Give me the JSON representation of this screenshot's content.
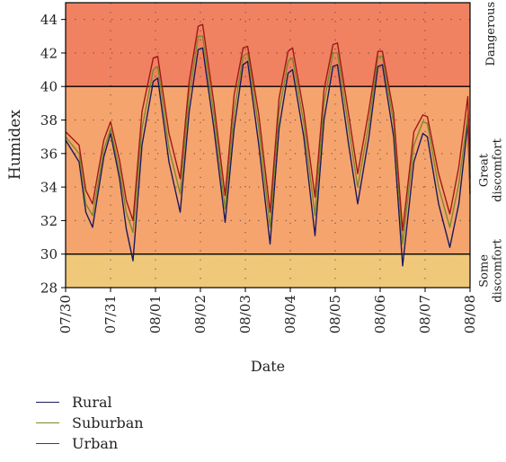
{
  "chart_data": {
    "type": "line",
    "xlabel": "Date",
    "ylabel": "Humidex",
    "ylim": [
      28,
      45
    ],
    "yticks": [
      28,
      30,
      32,
      34,
      36,
      38,
      40,
      42,
      44
    ],
    "xticks": [
      "07/30",
      "07/31",
      "08/01",
      "08/02",
      "08/03",
      "08/04",
      "08/05",
      "08/06",
      "08/07",
      "08/08"
    ],
    "grid": "dotted",
    "legend_position": "bottom-left",
    "zones": [
      {
        "label": "Dangerous",
        "from": 40,
        "to": 45,
        "color": "#f08262"
      },
      {
        "label": "Great discomfort",
        "from": 30,
        "to": 40,
        "color": "#f5a46e"
      },
      {
        "label": "Some discomfort",
        "from": 28,
        "to": 30,
        "color": "#f0c87a"
      }
    ],
    "series": [
      {
        "name": "Rural",
        "color": "#1a1a5e",
        "x": [
          0,
          0.3,
          0.45,
          0.6,
          0.85,
          1.0,
          1.2,
          1.35,
          1.5,
          1.7,
          1.95,
          2.05,
          2.3,
          2.55,
          2.75,
          2.95,
          3.05,
          3.3,
          3.55,
          3.75,
          3.95,
          4.05,
          4.3,
          4.55,
          4.75,
          4.95,
          5.05,
          5.3,
          5.55,
          5.75,
          5.95,
          6.05,
          6.3,
          6.5,
          6.75,
          6.95,
          7.05,
          7.3,
          7.5,
          7.75,
          7.95,
          8.05,
          8.3,
          8.55,
          8.75,
          8.95,
          9.0
        ],
        "values": [
          36.8,
          35.5,
          32.5,
          31.6,
          35.8,
          37.2,
          34.5,
          31.5,
          29.6,
          36.5,
          40.3,
          40.5,
          35.5,
          32.5,
          38.5,
          42.2,
          42.3,
          37.5,
          31.9,
          37.5,
          41.3,
          41.5,
          36.5,
          30.6,
          37.5,
          40.8,
          41.0,
          37.0,
          31.1,
          38.0,
          41.2,
          41.3,
          36.5,
          33.0,
          37.0,
          41.2,
          41.3,
          37.0,
          29.3,
          35.5,
          37.2,
          37.0,
          33.0,
          30.4,
          33.0,
          37.8,
          33.6
        ]
      },
      {
        "name": "Suburban",
        "color": "#7a8a28",
        "x": [
          0,
          0.3,
          0.45,
          0.6,
          0.85,
          1.0,
          1.2,
          1.35,
          1.5,
          1.7,
          1.95,
          2.05,
          2.3,
          2.55,
          2.75,
          2.95,
          3.05,
          3.3,
          3.55,
          3.75,
          3.95,
          4.05,
          4.3,
          4.55,
          4.75,
          4.95,
          5.05,
          5.3,
          5.55,
          5.75,
          5.95,
          6.05,
          6.3,
          6.5,
          6.75,
          6.95,
          7.05,
          7.3,
          7.5,
          7.75,
          7.95,
          8.05,
          8.3,
          8.55,
          8.75,
          8.95,
          9.0
        ],
        "values": [
          37.0,
          36.0,
          33.0,
          32.3,
          36.2,
          37.5,
          35.0,
          32.5,
          31.3,
          37.5,
          41.0,
          41.2,
          36.3,
          33.6,
          39.5,
          43.0,
          43.0,
          38.3,
          32.7,
          38.5,
          41.8,
          42.0,
          37.5,
          31.6,
          38.5,
          41.5,
          41.7,
          37.8,
          32.3,
          39.0,
          42.0,
          42.0,
          37.5,
          34.0,
          37.8,
          41.8,
          41.8,
          37.8,
          30.6,
          36.5,
          37.9,
          37.8,
          34.0,
          31.6,
          34.2,
          38.3,
          34.0
        ]
      },
      {
        "name": "Urban",
        "color": "#a01818",
        "x": [
          0,
          0.3,
          0.45,
          0.6,
          0.85,
          1.0,
          1.2,
          1.35,
          1.5,
          1.7,
          1.95,
          2.05,
          2.3,
          2.55,
          2.75,
          2.95,
          3.05,
          3.3,
          3.55,
          3.75,
          3.95,
          4.05,
          4.3,
          4.55,
          4.75,
          4.95,
          5.05,
          5.3,
          5.55,
          5.75,
          5.95,
          6.05,
          6.3,
          6.5,
          6.75,
          6.95,
          7.05,
          7.3,
          7.5,
          7.75,
          7.95,
          8.05,
          8.3,
          8.55,
          8.75,
          8.95,
          9.0
        ],
        "values": [
          37.3,
          36.5,
          33.8,
          33.0,
          36.8,
          37.9,
          35.6,
          33.2,
          32.0,
          38.5,
          41.7,
          41.8,
          37.2,
          34.5,
          40.3,
          43.6,
          43.7,
          39.0,
          33.5,
          39.5,
          42.3,
          42.4,
          38.3,
          32.5,
          39.3,
          42.1,
          42.3,
          38.5,
          33.4,
          39.8,
          42.5,
          42.6,
          38.3,
          34.8,
          38.6,
          42.1,
          42.1,
          38.4,
          31.4,
          37.3,
          38.3,
          38.2,
          34.8,
          32.4,
          35.2,
          39.4,
          34.5
        ]
      }
    ]
  }
}
